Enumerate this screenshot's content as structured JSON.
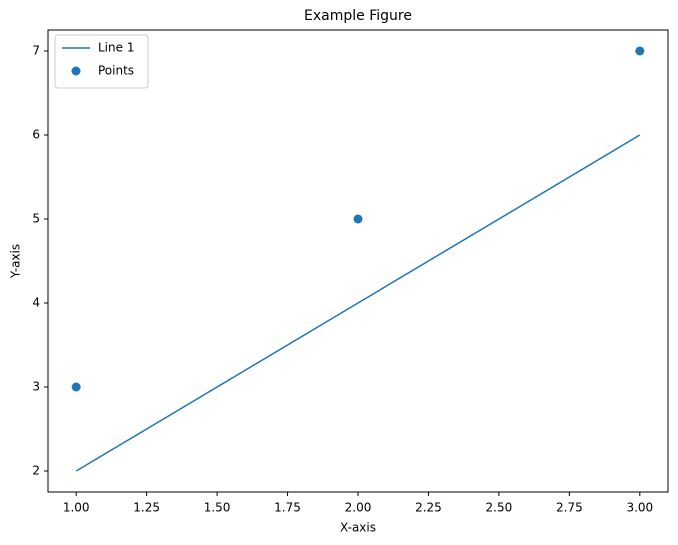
{
  "chart_data": {
    "type": "line",
    "title": "Example Figure",
    "xlabel": "X-axis",
    "ylabel": "Y-axis",
    "x": [
      1,
      2,
      3
    ],
    "series": [
      {
        "name": "Line 1",
        "type": "line",
        "color": "#1f77b4",
        "values": [
          2,
          4,
          6
        ]
      },
      {
        "name": "Points",
        "type": "scatter",
        "color": "#1f77b4",
        "values": [
          3,
          5,
          7
        ]
      }
    ],
    "xlim": [
      0.9,
      3.1
    ],
    "ylim": [
      1.75,
      7.25
    ],
    "xticks": [
      {
        "value": 1,
        "label": "1.00"
      },
      {
        "value": 1.25,
        "label": "1.25"
      },
      {
        "value": 1.5,
        "label": "1.50"
      },
      {
        "value": 1.75,
        "label": "1.75"
      },
      {
        "value": 2,
        "label": "2.00"
      },
      {
        "value": 2.25,
        "label": "2.25"
      },
      {
        "value": 2.5,
        "label": "2.50"
      },
      {
        "value": 2.75,
        "label": "2.75"
      },
      {
        "value": 3,
        "label": "3.00"
      }
    ],
    "yticks": [
      2,
      3,
      4,
      5,
      6,
      7
    ],
    "grid": false,
    "legend": "upper-left"
  }
}
